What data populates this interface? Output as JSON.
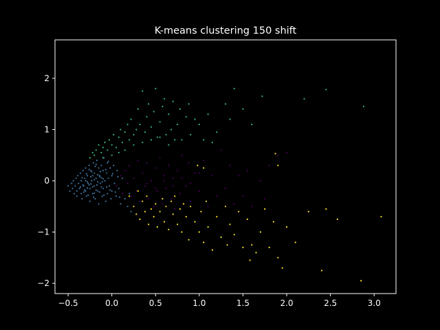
{
  "chart_data": {
    "type": "scatter",
    "title": "K-means clustering 150 shift",
    "xlabel": "",
    "ylabel": "",
    "xlim": [
      -0.65,
      3.25
    ],
    "ylim": [
      -2.2,
      2.75
    ],
    "x_ticks": [
      -0.5,
      0.0,
      0.5,
      1.0,
      1.5,
      2.0,
      2.5,
      3.0
    ],
    "x_tick_labels": [
      "−0.5",
      "0.0",
      "0.5",
      "1.0",
      "1.5",
      "2.0",
      "2.5",
      "3.0"
    ],
    "y_ticks": [
      -2,
      -1,
      0,
      1,
      2
    ],
    "y_tick_labels": [
      "−2",
      "−1",
      "0",
      "1",
      "2"
    ],
    "grid": false,
    "colors": {
      "background": "#000000",
      "axes": "#ffffff",
      "cluster_blue": "#3b6f9b",
      "cluster_green": "#35b779",
      "cluster_purple": "#440154",
      "cluster_yellow": "#fde725"
    },
    "series": [
      {
        "color": "#3b6f9b",
        "points": [
          [
            -0.5,
            -0.1
          ],
          [
            -0.48,
            -0.2
          ],
          [
            -0.46,
            -0.05
          ],
          [
            -0.45,
            -0.15
          ],
          [
            -0.44,
            0.0
          ],
          [
            -0.43,
            -0.25
          ],
          [
            -0.42,
            -0.1
          ],
          [
            -0.41,
            0.05
          ],
          [
            -0.4,
            -0.2
          ],
          [
            -0.4,
            -0.3
          ],
          [
            -0.39,
            0.1
          ],
          [
            -0.38,
            -0.05
          ],
          [
            -0.37,
            -0.15
          ],
          [
            -0.36,
            0.15
          ],
          [
            -0.35,
            -0.25
          ],
          [
            -0.35,
            0.0
          ],
          [
            -0.34,
            -0.35
          ],
          [
            -0.33,
            0.2
          ],
          [
            -0.32,
            -0.1
          ],
          [
            -0.31,
            0.05
          ],
          [
            -0.3,
            -0.2
          ],
          [
            -0.3,
            0.25
          ],
          [
            -0.29,
            -0.3
          ],
          [
            -0.28,
            0.1
          ],
          [
            -0.27,
            -0.05
          ],
          [
            -0.26,
            0.3
          ],
          [
            -0.25,
            -0.15
          ],
          [
            -0.25,
            -0.4
          ],
          [
            -0.24,
            0.2
          ],
          [
            -0.23,
            0.0
          ],
          [
            -0.22,
            -0.25
          ],
          [
            -0.21,
            0.35
          ],
          [
            -0.2,
            -0.1
          ],
          [
            -0.2,
            0.15
          ],
          [
            -0.19,
            -0.35
          ],
          [
            -0.18,
            0.05
          ],
          [
            -0.17,
            0.4
          ],
          [
            -0.16,
            -0.2
          ],
          [
            -0.15,
            0.25
          ],
          [
            -0.15,
            -0.45
          ],
          [
            -0.14,
            0.1
          ],
          [
            -0.13,
            -0.05
          ],
          [
            -0.12,
            0.3
          ],
          [
            -0.11,
            -0.3
          ],
          [
            -0.1,
            0.2
          ],
          [
            -0.1,
            -0.15
          ],
          [
            -0.09,
            0.45
          ],
          [
            -0.08,
            0.0
          ],
          [
            -0.07,
            -0.4
          ],
          [
            -0.06,
            0.15
          ],
          [
            -0.05,
            -0.25
          ],
          [
            -0.05,
            0.35
          ],
          [
            -0.04,
            0.05
          ],
          [
            -0.03,
            -0.1
          ],
          [
            -0.02,
            0.25
          ],
          [
            -0.01,
            -0.35
          ],
          [
            0.0,
            0.1
          ],
          [
            0.0,
            -0.2
          ],
          [
            0.02,
            0.3
          ],
          [
            0.03,
            -0.05
          ],
          [
            0.05,
            -0.3
          ],
          [
            0.06,
            0.2
          ],
          [
            0.08,
            -0.15
          ],
          [
            0.1,
            -0.45
          ],
          [
            0.12,
            0.05
          ],
          [
            0.15,
            -0.35
          ],
          [
            0.18,
            -0.5
          ],
          [
            0.2,
            -0.25
          ],
          [
            0.22,
            -0.6
          ],
          [
            -0.28,
            -0.02
          ],
          [
            -0.26,
            -0.08
          ],
          [
            -0.24,
            0.08
          ],
          [
            -0.22,
            -0.12
          ],
          [
            -0.2,
            0.02
          ],
          [
            -0.18,
            -0.18
          ],
          [
            -0.16,
            0.12
          ],
          [
            -0.14,
            -0.22
          ],
          [
            -0.12,
            0.06
          ],
          [
            -0.33,
            -0.08
          ],
          [
            -0.31,
            -0.18
          ],
          [
            -0.29,
            0.14
          ],
          [
            -0.27,
            -0.28
          ],
          [
            -0.23,
            0.18
          ],
          [
            -0.21,
            -0.32
          ],
          [
            -0.19,
            0.28
          ],
          [
            -0.17,
            -0.08
          ],
          [
            -0.13,
            0.18
          ],
          [
            -0.11,
            -0.02
          ],
          [
            -0.09,
            -0.28
          ],
          [
            -0.07,
            0.22
          ],
          [
            -0.06,
            -0.12
          ],
          [
            -0.04,
            0.38
          ],
          [
            -0.02,
            -0.18
          ],
          [
            0.01,
            0.14
          ],
          [
            0.04,
            -0.22
          ],
          [
            0.07,
            0.08
          ],
          [
            0.09,
            -0.32
          ],
          [
            -0.36,
            -0.12
          ],
          [
            -0.34,
            0.06
          ],
          [
            -0.32,
            -0.22
          ],
          [
            -0.3,
            0.0
          ],
          [
            -0.28,
            -0.14
          ],
          [
            -0.26,
            0.22
          ],
          [
            -0.24,
            -0.06
          ],
          [
            -0.22,
            0.1
          ],
          [
            -0.2,
            -0.24
          ],
          [
            -0.18,
            0.32
          ],
          [
            -0.16,
            -0.02
          ],
          [
            -0.14,
            0.08
          ],
          [
            -0.12,
            -0.12
          ],
          [
            -0.1,
            0.04
          ]
        ]
      },
      {
        "color": "#35b779",
        "points": [
          [
            -0.25,
            0.45
          ],
          [
            -0.22,
            0.55
          ],
          [
            -0.2,
            0.5
          ],
          [
            -0.18,
            0.6
          ],
          [
            -0.15,
            0.7
          ],
          [
            -0.12,
            0.55
          ],
          [
            -0.1,
            0.65
          ],
          [
            -0.08,
            0.75
          ],
          [
            -0.05,
            0.6
          ],
          [
            -0.03,
            0.8
          ],
          [
            0.0,
            0.7
          ],
          [
            0.02,
            0.9
          ],
          [
            0.05,
            0.65
          ],
          [
            0.08,
            0.85
          ],
          [
            0.1,
            1.0
          ],
          [
            0.12,
            0.75
          ],
          [
            0.15,
            0.95
          ],
          [
            0.18,
            1.1
          ],
          [
            0.2,
            0.8
          ],
          [
            0.22,
            1.2
          ],
          [
            0.25,
            0.9
          ],
          [
            0.28,
            1.0
          ],
          [
            0.3,
            1.4
          ],
          [
            0.32,
            1.1
          ],
          [
            0.35,
            1.75
          ],
          [
            0.38,
            0.95
          ],
          [
            0.4,
            1.25
          ],
          [
            0.42,
            1.5
          ],
          [
            0.45,
            1.05
          ],
          [
            0.48,
            1.35
          ],
          [
            0.5,
            1.8
          ],
          [
            0.52,
            0.85
          ],
          [
            0.55,
            1.15
          ],
          [
            0.58,
            1.45
          ],
          [
            0.6,
            1.6
          ],
          [
            0.62,
            0.9
          ],
          [
            0.65,
            1.3
          ],
          [
            0.68,
            1.0
          ],
          [
            0.7,
            1.55
          ],
          [
            0.75,
            1.1
          ],
          [
            0.78,
            1.4
          ],
          [
            0.8,
            0.8
          ],
          [
            0.85,
            1.25
          ],
          [
            0.88,
            1.5
          ],
          [
            0.9,
            0.9
          ],
          [
            0.95,
            1.2
          ],
          [
            1.0,
            1.1
          ],
          [
            1.05,
            0.8
          ],
          [
            1.1,
            1.3
          ],
          [
            1.15,
            0.75
          ],
          [
            1.2,
            0.95
          ],
          [
            1.3,
            1.5
          ],
          [
            1.35,
            1.2
          ],
          [
            1.4,
            1.8
          ],
          [
            1.5,
            1.4
          ],
          [
            1.6,
            1.1
          ],
          [
            1.72,
            1.65
          ],
          [
            2.2,
            1.6
          ],
          [
            2.45,
            1.78
          ],
          [
            2.88,
            1.45
          ],
          [
            -0.1,
            0.45
          ],
          [
            0.0,
            0.5
          ],
          [
            0.08,
            0.55
          ],
          [
            0.15,
            0.6
          ],
          [
            0.25,
            0.7
          ],
          [
            0.35,
            0.75
          ],
          [
            0.45,
            0.8
          ],
          [
            0.55,
            0.85
          ],
          [
            0.65,
            0.7
          ],
          [
            0.72,
            0.8
          ]
        ]
      },
      {
        "color": "#440154",
        "points": [
          [
            0.05,
            -0.1
          ],
          [
            0.1,
            0.1
          ],
          [
            0.12,
            -0.25
          ],
          [
            0.15,
            0.2
          ],
          [
            0.18,
            -0.05
          ],
          [
            0.2,
            0.3
          ],
          [
            0.22,
            -0.3
          ],
          [
            0.25,
            0.05
          ],
          [
            0.28,
            -0.2
          ],
          [
            0.3,
            0.4
          ],
          [
            0.32,
            -0.4
          ],
          [
            0.35,
            0.15
          ],
          [
            0.38,
            -0.1
          ],
          [
            0.4,
            0.35
          ],
          [
            0.42,
            -0.35
          ],
          [
            0.45,
            0.0
          ],
          [
            0.48,
            -0.5
          ],
          [
            0.5,
            0.25
          ],
          [
            0.52,
            -0.2
          ],
          [
            0.55,
            0.45
          ],
          [
            0.58,
            -0.45
          ],
          [
            0.6,
            0.1
          ],
          [
            0.62,
            -0.15
          ],
          [
            0.65,
            0.3
          ],
          [
            0.68,
            -0.35
          ],
          [
            0.7,
            0.05
          ],
          [
            0.72,
            -0.55
          ],
          [
            0.75,
            0.2
          ],
          [
            0.78,
            -0.25
          ],
          [
            0.8,
            0.5
          ],
          [
            0.85,
            -0.1
          ],
          [
            0.88,
            0.35
          ],
          [
            0.9,
            -0.4
          ],
          [
            0.95,
            0.15
          ],
          [
            1.0,
            -0.2
          ],
          [
            1.05,
            0.4
          ],
          [
            1.1,
            -0.5
          ],
          [
            1.15,
            0.1
          ],
          [
            1.2,
            -0.3
          ],
          [
            1.25,
            0.6
          ],
          [
            1.3,
            -0.15
          ],
          [
            1.35,
            0.3
          ],
          [
            1.4,
            -0.45
          ],
          [
            1.45,
            0.1
          ],
          [
            1.5,
            -0.3
          ],
          [
            1.55,
            0.2
          ],
          [
            1.6,
            -0.5
          ],
          [
            1.7,
            0.0
          ],
          [
            1.75,
            -0.35
          ],
          [
            1.8,
            0.3
          ],
          [
            1.9,
            0.5
          ],
          [
            2.0,
            0.55
          ],
          [
            0.4,
            -0.05
          ],
          [
            0.5,
            -0.15
          ],
          [
            0.6,
            0.0
          ],
          [
            0.7,
            -0.1
          ],
          [
            0.8,
            0.05
          ],
          [
            0.9,
            -0.05
          ],
          [
            1.0,
            0.15
          ]
        ]
      },
      {
        "color": "#fde725",
        "points": [
          [
            0.2,
            -0.3
          ],
          [
            0.25,
            -0.5
          ],
          [
            0.28,
            -0.65
          ],
          [
            0.3,
            -0.2
          ],
          [
            0.32,
            -0.75
          ],
          [
            0.35,
            -0.4
          ],
          [
            0.38,
            -0.6
          ],
          [
            0.4,
            -0.3
          ],
          [
            0.42,
            -0.85
          ],
          [
            0.45,
            -0.55
          ],
          [
            0.48,
            -0.7
          ],
          [
            0.5,
            -0.45
          ],
          [
            0.52,
            -0.9
          ],
          [
            0.55,
            -0.6
          ],
          [
            0.58,
            -0.35
          ],
          [
            0.6,
            -0.8
          ],
          [
            0.62,
            -0.5
          ],
          [
            0.65,
            -0.95
          ],
          [
            0.68,
            -0.4
          ],
          [
            0.7,
            -0.65
          ],
          [
            0.72,
            -0.3
          ],
          [
            0.75,
            -0.85
          ],
          [
            0.78,
            -0.55
          ],
          [
            0.8,
            -1.0
          ],
          [
            0.82,
            -0.45
          ],
          [
            0.85,
            -0.7
          ],
          [
            0.88,
            -1.15
          ],
          [
            0.9,
            -0.5
          ],
          [
            0.95,
            -0.8
          ],
          [
            1.0,
            -1.0
          ],
          [
            1.02,
            -0.6
          ],
          [
            1.05,
            -1.2
          ],
          [
            1.08,
            -0.4
          ],
          [
            1.1,
            -0.9
          ],
          [
            1.15,
            -1.35
          ],
          [
            1.2,
            -0.7
          ],
          [
            1.25,
            -1.1
          ],
          [
            1.3,
            -0.5
          ],
          [
            1.32,
            -1.25
          ],
          [
            1.35,
            -0.85
          ],
          [
            1.4,
            -1.05
          ],
          [
            1.45,
            -0.6
          ],
          [
            1.5,
            -1.3
          ],
          [
            1.55,
            -0.75
          ],
          [
            1.58,
            -1.55
          ],
          [
            1.6,
            -1.25
          ],
          [
            1.65,
            -1.4
          ],
          [
            1.7,
            -1.0
          ],
          [
            1.75,
            -0.55
          ],
          [
            1.8,
            -1.3
          ],
          [
            1.85,
            -0.8
          ],
          [
            1.9,
            -1.5
          ],
          [
            1.95,
            -1.7
          ],
          [
            2.0,
            -0.9
          ],
          [
            2.1,
            -1.2
          ],
          [
            2.25,
            -0.6
          ],
          [
            2.4,
            -1.75
          ],
          [
            2.45,
            -0.55
          ],
          [
            2.58,
            -0.75
          ],
          [
            2.85,
            -1.95
          ],
          [
            3.08,
            -0.7
          ],
          [
            1.87,
            0.53
          ],
          [
            1.9,
            0.3
          ],
          [
            1.05,
            0.25
          ],
          [
            0.98,
            0.3
          ]
        ]
      }
    ]
  }
}
